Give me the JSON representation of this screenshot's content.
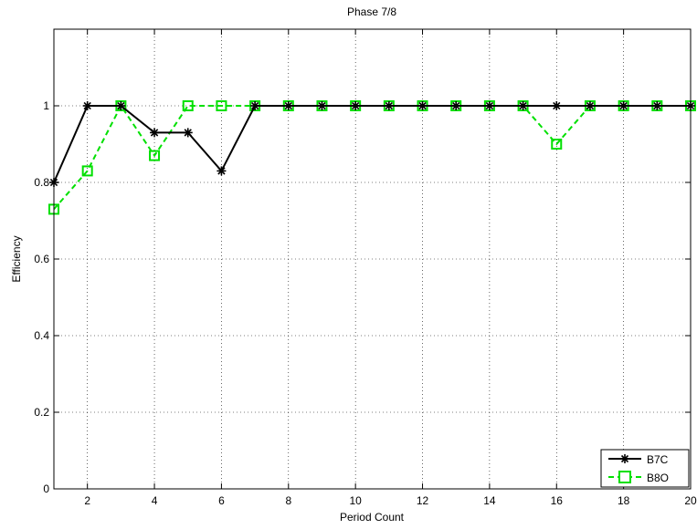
{
  "chart_data": {
    "type": "line",
    "title": "Phase 7/8",
    "xlabel": "Period Count",
    "ylabel": "Efficiency",
    "xlim": [
      1,
      20
    ],
    "ylim": [
      0,
      1.2
    ],
    "x": [
      1,
      2,
      3,
      4,
      5,
      6,
      7,
      8,
      9,
      10,
      11,
      12,
      13,
      14,
      15,
      16,
      17,
      18,
      19,
      20
    ],
    "xticks": [
      2,
      4,
      6,
      8,
      10,
      12,
      14,
      16,
      18,
      20
    ],
    "yticks": [
      0,
      0.2,
      0.4,
      0.6,
      0.8,
      1
    ],
    "xtick_labels": [
      "2",
      "4",
      "6",
      "8",
      "10",
      "12",
      "14",
      "16",
      "18",
      "20"
    ],
    "ytick_labels": [
      "0",
      "0.2",
      "0.4",
      "0.6",
      "0.8",
      "1"
    ],
    "grid": true,
    "legend_position": "bottom-right",
    "series": [
      {
        "name": "B7C",
        "color": "#000000",
        "marker": "asterisk",
        "line_style": "solid",
        "values": [
          0.8,
          1.0,
          1.0,
          0.93,
          0.93,
          0.83,
          1.0,
          1.0,
          1.0,
          1.0,
          1.0,
          1.0,
          1.0,
          1.0,
          1.0,
          1.0,
          1.0,
          1.0,
          1.0,
          1.0
        ]
      },
      {
        "name": "B8O",
        "color": "#00e000",
        "marker": "square",
        "line_style": "dashed",
        "values": [
          0.73,
          0.83,
          1.0,
          0.87,
          1.0,
          1.0,
          1.0,
          1.0,
          1.0,
          1.0,
          1.0,
          1.0,
          1.0,
          1.0,
          1.0,
          0.9,
          1.0,
          1.0,
          1.0,
          1.0
        ]
      }
    ]
  }
}
